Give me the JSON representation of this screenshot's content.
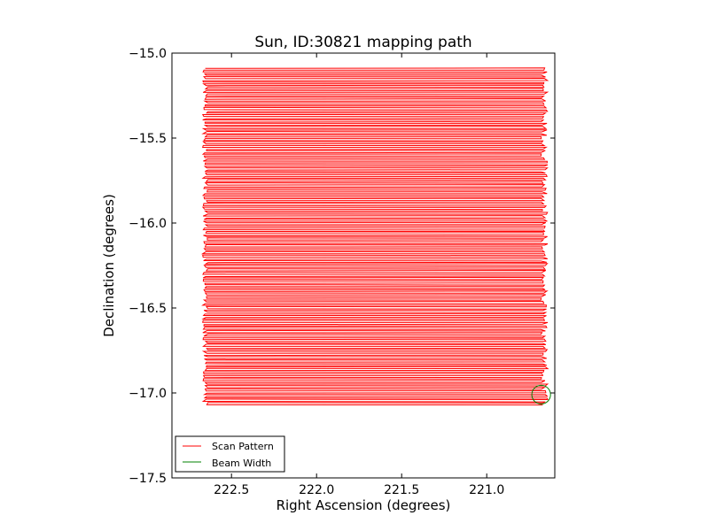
{
  "chart_data": {
    "type": "line",
    "title": "Sun, ID:30821 mapping path",
    "xlabel": "Right Ascension (degrees)",
    "ylabel": "Declination (degrees)",
    "xlim": [
      222.85,
      220.6
    ],
    "ylim": [
      -17.5,
      -15.0
    ],
    "x_inverted": true,
    "xticks": [
      222.5,
      222.0,
      221.5,
      221.0
    ],
    "xtick_labels": [
      "222.5",
      "222.0",
      "221.5",
      "221.0"
    ],
    "yticks": [
      -15.0,
      -15.5,
      -16.0,
      -16.5,
      -17.0,
      -17.5
    ],
    "ytick_labels": [
      "−15.0",
      "−15.5",
      "−16.0",
      "−16.5",
      "−17.0",
      "−17.5"
    ],
    "grid": false,
    "legend_position": "lower-left",
    "series": [
      {
        "name": "Scan Pattern",
        "color": "#ff0000",
        "pattern": "raster",
        "ra_range": [
          220.67,
          222.66
        ],
        "dec_range": [
          -17.07,
          -15.09
        ],
        "dec_step": 0.0101
      },
      {
        "name": "Beam Width",
        "color": "#008000",
        "pattern": "circle",
        "center": [
          220.68,
          -17.01
        ],
        "radius_deg": 0.055
      }
    ]
  }
}
